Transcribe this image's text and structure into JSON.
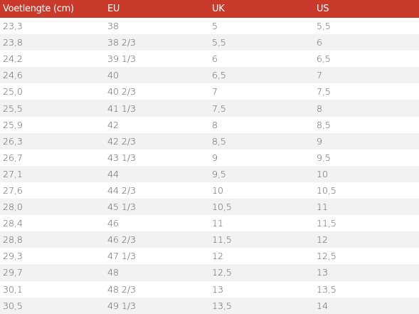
{
  "table": {
    "columns": [
      "Voetlengte (cm)",
      "EU",
      "UK",
      "US"
    ],
    "rows": [
      [
        "23,3",
        "38",
        "5",
        "5,5"
      ],
      [
        "23,8",
        "38 2/3",
        "5,5",
        "6"
      ],
      [
        "24,2",
        "39 1/3",
        "6",
        "6,5"
      ],
      [
        "24,6",
        "40",
        "6,5",
        "7"
      ],
      [
        "25,0",
        "40 2/3",
        "7",
        "7,5"
      ],
      [
        "25,5",
        "41 1/3",
        "7,5",
        "8"
      ],
      [
        "25,9",
        "42",
        "8",
        "8,5"
      ],
      [
        "26,3",
        "42 2/3",
        "8,5",
        "9"
      ],
      [
        "26,7",
        "43 1/3",
        "9",
        "9,5"
      ],
      [
        "27,1",
        "44",
        "9,5",
        "10"
      ],
      [
        "27,6",
        "44 2/3",
        "10",
        "10,5"
      ],
      [
        "28,0",
        "45 1/3",
        "10,5",
        "11"
      ],
      [
        "28,4",
        "46",
        "11",
        "11,5"
      ],
      [
        "28,8",
        "46 2/3",
        "11,5",
        "12"
      ],
      [
        "29,3",
        "47 1/3",
        "12",
        "12,5"
      ],
      [
        "29,7",
        "48",
        "12,5",
        "13"
      ],
      [
        "30,1",
        "48 2/3",
        "13",
        "13,5"
      ],
      [
        "30,5",
        "49 1/3",
        "13,5",
        "14"
      ]
    ]
  }
}
